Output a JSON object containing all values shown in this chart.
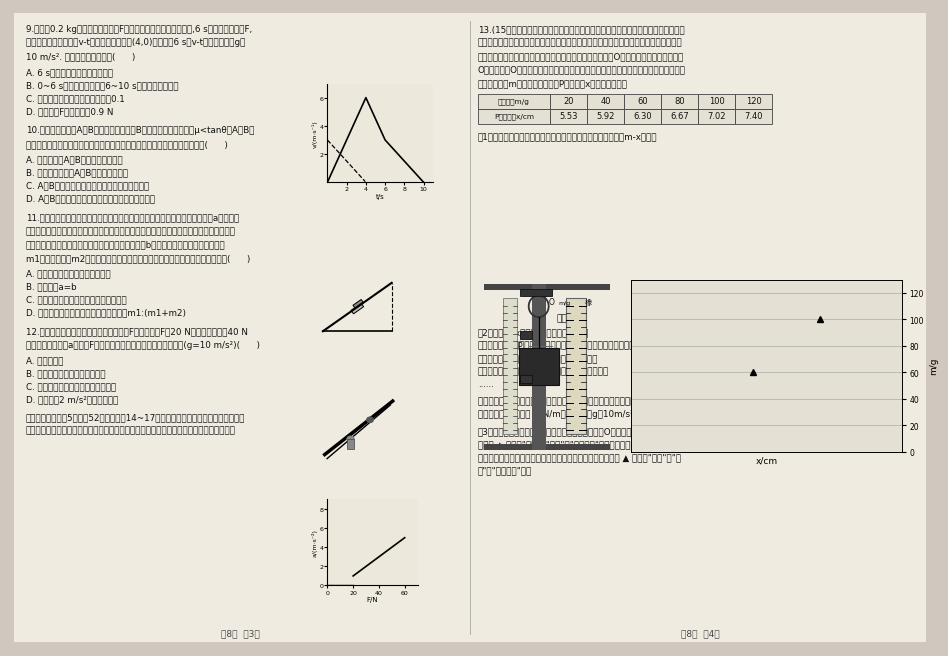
{
  "bg_color": "#d0c8be",
  "page_bg": "#f0ebe0",
  "footer_left": "共8页  第3页",
  "footer_right": "共8页  第4页",
  "q9_lines": [
    "9.质量为0.2 kg的物块在水平推力F的作用下沿水平面做直线运动,6 s末撤去水平推力F,",
    "如图实线表示其运动的v-t图像，其中经过点(4,0)的虚线是6 s末v-t图像的切线。g取",
    "10 m/s². 下列说法不正确的是(      )"
  ],
  "q9_options": [
    "A. 6 s末物块运动方向不发生改变",
    "B. 0~6 s内物块平均速度比6~10 s内物块平均速度小",
    "C. 物块与水平面间的动摩擦因数为0.1",
    "D. 水平推力F的最大值为0.9 N"
  ],
  "q10_lines": [
    "10.如图所示，物块A、B叠放在一起，其中B与斜面间的动摩擦因数μ<tanθ，A、B整",
    "体相对静止以一定的初速度沿固定的足够长的斜面上滑，则下列说法正确的是(      )"
  ],
  "q10_options": [
    "A. 上滑的过程A、B整体处于超重状态",
    "B. 上滑到最高点后A、B整体将停止运动",
    "C. A与B之间的摩擦力在上滑过程中大于下滑过程",
    "D. A与B之间的摩擦力在上滑与下滑过程中大小相等"
  ],
  "q11_lines": [
    "11.如图所示为儿童乐园里一项游乐活动的示意图，金属导轨倾斜固定，倾角为a，导轨上",
    "开有一狭槽，内置一小球，球可沿槽无摩擦滑动，绳子一端与球相连，另一端连接一抱枕，",
    "小孩可抱住抱枕与之一起下滑，绳与竖直方向夹角为b，且保持不变。假设抱枕质量为",
    "m1，小孩质量为m2，小球、绳的质量及空气阻力忽略不计。则下列说法正确的是(      )"
  ],
  "q11_options": [
    "A. 小孩与抱枕一起做匀速直线运动",
    "B. 分析可知a=b",
    "C. 小孩对抱枕的作用力平行导轨方向向下",
    "D. 绳子张力与抱枕对小孩的作用力之比为m1:(m1+m2)"
  ],
  "q12_lines": [
    "12.静止在水平面上的物体，受到水平拉力F的作用，在F从20 N开始逐渐增大到40 N",
    "的过程中，加速度a随拉力F变化的图像如图所示，由此无法计算出(g=10 m/s²)(      )"
  ],
  "q12_options": [
    "A. 物体的质量",
    "B. 物体与水平面间的动摩擦因数",
    "C. 物体与水平面间的滑动摩擦力大小",
    "D. 加速度为2 m/s²时物体的速度"
  ],
  "q2_footer": [
    "二、非选择题：共5题，共52分。其中第14~17题解答时请写出必要文字说明、方程式",
    "和重要演算步骤，只写最后答案的不能得分；有数值计算时，答案中必须写出数值和单位。"
  ],
  "q13_lines": [
    "13.(15分）某兴趣小组同学想探究橡皮圈中的张力与橡皮圈的形变量是否符合胡克定",
    "律。若符合胡克定律，则进一步测量其劲度系数（圈中张力与整圈形变量之比）。他们设",
    "计了如图甲所示实验：橡皮圈上端固定在细绳套上，结点为O，刻度尺竖直固定在一边，",
    "O刻度与结点O水平对齐，橡皮圈下端悬挂钩码，依次增加钩码的个数，分别记录下所挂",
    "钩码的总质量m和对应橡皮圈下端P的刻度值x，如下表所示："
  ],
  "table_headers": [
    "钩码质量m/g",
    "20",
    "40",
    "60",
    "80",
    "100",
    "120"
  ],
  "table_row": [
    "P点刻度值x/cm",
    "5.53",
    "5.92",
    "6.30",
    "6.67",
    "7.02",
    "7.40"
  ],
  "q13_sub1": "（1）请在图乙中，根据表中所给数据，充分利用坐标纸，作出m-x图象：",
  "q13_sub2_lines": [
    "（2）作出m-x图象后，同学们展开了讨论：",
    "甲同学认为：这条橡皮圈中的张力和橡皮圈的形变量基本符合胡克定律；",
    "乙同学认为：图象的斜率k即为橡皮圈的劲度系数；",
    "丙同学认为：橡皮圈中的张力并不等于所挂钩码的重力；",
    "......"
  ],
  "q13_sub3_lines": [
    "请参与同学们的讨论，并根据图象数据确定：橡皮圈不拉伸时的总周长约为  ▲  cm，",
    "橡皮圈的劲度系数约为 ▲ N/m（重力加速度g取10m/s²，结果保留三位有效数字）。"
  ],
  "q13_sub4_lines": [
    "（3）若实验中刻度尺的0刻度略高于橡皮圈上端结点O，则由实验数据得到的劲度",
    "系数将 ▲ （选填\"偏小\"、\"偏大\"或\"不受影响\"）；若实验中刻度尺没有完全竖",
    "直，而读数时视线保持水平，则由实验数据得到的劲度系数将 ▲ （选填\"偏小\"、\"偏",
    "大\"或\"不受影响\"）。"
  ],
  "x_data": [
    5.53,
    5.92,
    6.3,
    6.67,
    7.02,
    7.4
  ],
  "m_data": [
    20,
    40,
    60,
    80,
    100,
    120
  ]
}
